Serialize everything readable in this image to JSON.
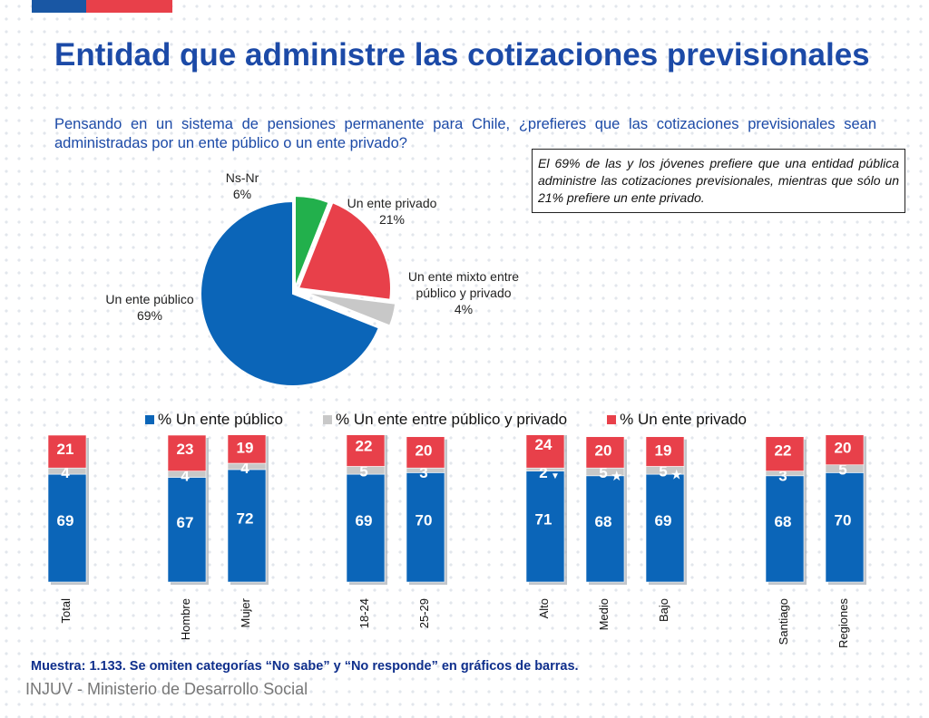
{
  "colors": {
    "blue": "#0b65b8",
    "gray": "#c8c8c8",
    "red": "#e8404a",
    "green": "#22b04c",
    "navy": "#0f2f8c",
    "title_blue": "#1c4aa7",
    "top_bar_blue": "#1957a4",
    "top_bar_red": "#e8404a"
  },
  "title": "Entidad que administre las cotizaciones previsionales",
  "subtitle": "Pensando en un sistema de pensiones permanente para Chile, ¿prefieres que las cotizaciones previsionales sean administradas por un ente público o un ente privado?",
  "note": "El 69% de las y los jóvenes prefiere que una entidad pública administre las cotizaciones previsionales, mientras que sólo un 21% prefiere un ente privado.",
  "footer": {
    "sample_note": "Muestra: 1.133. Se omiten categorías “No sabe” y “No responde” en gráficos de barras.",
    "brand": "INJUV - Ministerio de Desarrollo Social"
  },
  "chart_data": [
    {
      "type": "pie",
      "slices": [
        {
          "label": "Un ente público",
          "pct_label": "69%",
          "value": 69,
          "color": "#0b65b8"
        },
        {
          "label": "Ns-Nr",
          "pct_label": "6%",
          "value": 6,
          "color": "#22b04c"
        },
        {
          "label": "Un ente privado",
          "pct_label": "21%",
          "value": 21,
          "color": "#e8404a"
        },
        {
          "label": "Un ente mixto entre público y privado",
          "pct_label": "4%",
          "value": 4,
          "color": "#c8c8c8"
        }
      ]
    },
    {
      "type": "bar",
      "stacked": true,
      "legend_position": "top",
      "categories": [
        "Total",
        "Hombre",
        "Mujer",
        "18-24",
        "25-29",
        "Alto",
        "Medio",
        "Bajo",
        "Santiago",
        "Regiones"
      ],
      "series": [
        {
          "name": "% Un ente público",
          "color": "#0b65b8",
          "values": [
            69,
            67,
            72,
            69,
            70,
            71,
            68,
            69,
            68,
            70
          ]
        },
        {
          "name": "% Un ente entre público y privado",
          "color": "#c8c8c8",
          "values": [
            4,
            4,
            4,
            5,
            3,
            2,
            5,
            5,
            3,
            5
          ]
        },
        {
          "name": "% Un ente privado",
          "color": "#e8404a",
          "values": [
            21,
            23,
            19,
            22,
            20,
            24,
            20,
            19,
            22,
            20
          ]
        }
      ],
      "markers": [
        {
          "category": "Alto",
          "series": "% Un ente entre público y privado",
          "symbol": "▼"
        },
        {
          "category": "Medio",
          "series": "% Un ente entre público y privado",
          "symbol": "★"
        },
        {
          "category": "Bajo",
          "series": "% Un ente entre público y privado",
          "symbol": "★"
        }
      ]
    }
  ]
}
